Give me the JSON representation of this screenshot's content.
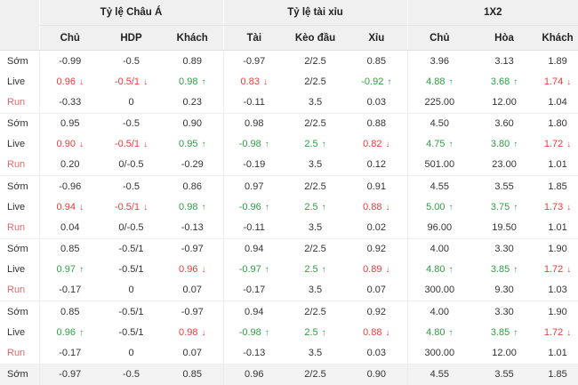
{
  "colors": {
    "up_green": "#2e9e44",
    "down_red": "#ee3b3b",
    "run_label_red": "#e06b6d",
    "header_bg": "#f0f0f0",
    "shaded_row_bg": "#f3f3f3",
    "text": "#333333"
  },
  "icons": {
    "trend_up": "↑",
    "trend_down": "↓"
  },
  "table": {
    "group_headers": [
      "Tỷ lệ Châu Á",
      "Tỷ lệ tài xỉu",
      "1X2"
    ],
    "column_headers": [
      "Chủ",
      "HDP",
      "Khách",
      "Tài",
      "Kèo đầu",
      "Xỉu",
      "Chủ",
      "Hòa",
      "Khách"
    ],
    "row_labels": [
      "Sớm",
      "Live",
      "Run"
    ],
    "rows": [
      {
        "label": "Sớm",
        "type": "som",
        "shaded": false,
        "cells": [
          [
            "-0.99",
            ""
          ],
          [
            "-0.5",
            ""
          ],
          [
            "0.89",
            ""
          ],
          [
            "-0.97",
            ""
          ],
          [
            "2/2.5",
            ""
          ],
          [
            "0.85",
            ""
          ],
          [
            "3.96",
            ""
          ],
          [
            "3.13",
            ""
          ],
          [
            "1.89",
            ""
          ]
        ]
      },
      {
        "label": "Live",
        "type": "live",
        "shaded": false,
        "cells": [
          [
            "0.96",
            "down"
          ],
          [
            "-0.5/1",
            "down"
          ],
          [
            "0.98",
            "up"
          ],
          [
            "0.83",
            "down"
          ],
          [
            "2/2.5",
            ""
          ],
          [
            "-0.92",
            "up"
          ],
          [
            "4.88",
            "up"
          ],
          [
            "3.68",
            "up"
          ],
          [
            "1.74",
            "down"
          ]
        ]
      },
      {
        "label": "Run",
        "type": "run",
        "shaded": false,
        "cells": [
          [
            "-0.33",
            ""
          ],
          [
            "0",
            ""
          ],
          [
            "0.23",
            ""
          ],
          [
            "-0.11",
            ""
          ],
          [
            "3.5",
            ""
          ],
          [
            "0.03",
            ""
          ],
          [
            "225.00",
            ""
          ],
          [
            "12.00",
            ""
          ],
          [
            "1.04",
            ""
          ]
        ]
      },
      {
        "label": "Sớm",
        "type": "som",
        "shaded": false,
        "cells": [
          [
            "0.95",
            ""
          ],
          [
            "-0.5",
            ""
          ],
          [
            "0.90",
            ""
          ],
          [
            "0.98",
            ""
          ],
          [
            "2/2.5",
            ""
          ],
          [
            "0.88",
            ""
          ],
          [
            "4.50",
            ""
          ],
          [
            "3.60",
            ""
          ],
          [
            "1.80",
            ""
          ]
        ]
      },
      {
        "label": "Live",
        "type": "live",
        "shaded": false,
        "cells": [
          [
            "0.90",
            "down"
          ],
          [
            "-0.5/1",
            "down"
          ],
          [
            "0.95",
            "up"
          ],
          [
            "-0.98",
            "up"
          ],
          [
            "2.5",
            "up"
          ],
          [
            "0.82",
            "down"
          ],
          [
            "4.75",
            "up"
          ],
          [
            "3.80",
            "up"
          ],
          [
            "1.72",
            "down"
          ]
        ]
      },
      {
        "label": "Run",
        "type": "run",
        "shaded": false,
        "cells": [
          [
            "0.20",
            ""
          ],
          [
            "0/-0.5",
            ""
          ],
          [
            "-0.29",
            ""
          ],
          [
            "-0.19",
            ""
          ],
          [
            "3.5",
            ""
          ],
          [
            "0.12",
            ""
          ],
          [
            "501.00",
            ""
          ],
          [
            "23.00",
            ""
          ],
          [
            "1.01",
            ""
          ]
        ]
      },
      {
        "label": "Sớm",
        "type": "som",
        "shaded": false,
        "cells": [
          [
            "-0.96",
            ""
          ],
          [
            "-0.5",
            ""
          ],
          [
            "0.86",
            ""
          ],
          [
            "0.97",
            ""
          ],
          [
            "2/2.5",
            ""
          ],
          [
            "0.91",
            ""
          ],
          [
            "4.55",
            ""
          ],
          [
            "3.55",
            ""
          ],
          [
            "1.85",
            ""
          ]
        ]
      },
      {
        "label": "Live",
        "type": "live",
        "shaded": false,
        "cells": [
          [
            "0.94",
            "down"
          ],
          [
            "-0.5/1",
            "down"
          ],
          [
            "0.98",
            "up"
          ],
          [
            "-0.96",
            "up"
          ],
          [
            "2.5",
            "up"
          ],
          [
            "0.88",
            "down"
          ],
          [
            "5.00",
            "up"
          ],
          [
            "3.75",
            "up"
          ],
          [
            "1.73",
            "down"
          ]
        ]
      },
      {
        "label": "Run",
        "type": "run",
        "shaded": false,
        "cells": [
          [
            "0.04",
            ""
          ],
          [
            "0/-0.5",
            ""
          ],
          [
            "-0.13",
            ""
          ],
          [
            "-0.11",
            ""
          ],
          [
            "3.5",
            ""
          ],
          [
            "0.02",
            ""
          ],
          [
            "96.00",
            ""
          ],
          [
            "19.50",
            ""
          ],
          [
            "1.01",
            ""
          ]
        ]
      },
      {
        "label": "Sớm",
        "type": "som",
        "shaded": false,
        "cells": [
          [
            "0.85",
            ""
          ],
          [
            "-0.5/1",
            ""
          ],
          [
            "-0.97",
            ""
          ],
          [
            "0.94",
            ""
          ],
          [
            "2/2.5",
            ""
          ],
          [
            "0.92",
            ""
          ],
          [
            "4.00",
            ""
          ],
          [
            "3.30",
            ""
          ],
          [
            "1.90",
            ""
          ]
        ]
      },
      {
        "label": "Live",
        "type": "live",
        "shaded": false,
        "cells": [
          [
            "0.97",
            "up"
          ],
          [
            "-0.5/1",
            ""
          ],
          [
            "0.96",
            "down"
          ],
          [
            "-0.97",
            "up"
          ],
          [
            "2.5",
            "up"
          ],
          [
            "0.89",
            "down"
          ],
          [
            "4.80",
            "up"
          ],
          [
            "3.85",
            "up"
          ],
          [
            "1.72",
            "down"
          ]
        ]
      },
      {
        "label": "Run",
        "type": "run",
        "shaded": false,
        "cells": [
          [
            "-0.17",
            ""
          ],
          [
            "0",
            ""
          ],
          [
            "0.07",
            ""
          ],
          [
            "-0.17",
            ""
          ],
          [
            "3.5",
            ""
          ],
          [
            "0.07",
            ""
          ],
          [
            "300.00",
            ""
          ],
          [
            "9.30",
            ""
          ],
          [
            "1.03",
            ""
          ]
        ]
      },
      {
        "label": "Sớm",
        "type": "som",
        "shaded": false,
        "cells": [
          [
            "0.85",
            ""
          ],
          [
            "-0.5/1",
            ""
          ],
          [
            "-0.97",
            ""
          ],
          [
            "0.94",
            ""
          ],
          [
            "2/2.5",
            ""
          ],
          [
            "0.92",
            ""
          ],
          [
            "4.00",
            ""
          ],
          [
            "3.30",
            ""
          ],
          [
            "1.90",
            ""
          ]
        ]
      },
      {
        "label": "Live",
        "type": "live",
        "shaded": false,
        "cells": [
          [
            "0.96",
            "up"
          ],
          [
            "-0.5/1",
            ""
          ],
          [
            "0.98",
            "down"
          ],
          [
            "-0.98",
            "up"
          ],
          [
            "2.5",
            "up"
          ],
          [
            "0.88",
            "down"
          ],
          [
            "4.80",
            "up"
          ],
          [
            "3.85",
            "up"
          ],
          [
            "1.72",
            "down"
          ]
        ]
      },
      {
        "label": "Run",
        "type": "run",
        "shaded": false,
        "cells": [
          [
            "-0.17",
            ""
          ],
          [
            "0",
            ""
          ],
          [
            "0.07",
            ""
          ],
          [
            "-0.13",
            ""
          ],
          [
            "3.5",
            ""
          ],
          [
            "0.03",
            ""
          ],
          [
            "300.00",
            ""
          ],
          [
            "12.00",
            ""
          ],
          [
            "1.01",
            ""
          ]
        ]
      },
      {
        "label": "Sớm",
        "type": "som",
        "shaded": true,
        "cells": [
          [
            "-0.97",
            ""
          ],
          [
            "-0.5",
            ""
          ],
          [
            "0.85",
            ""
          ],
          [
            "0.96",
            ""
          ],
          [
            "2/2.5",
            ""
          ],
          [
            "0.90",
            ""
          ],
          [
            "4.55",
            ""
          ],
          [
            "3.55",
            ""
          ],
          [
            "1.85",
            ""
          ]
        ]
      }
    ]
  }
}
